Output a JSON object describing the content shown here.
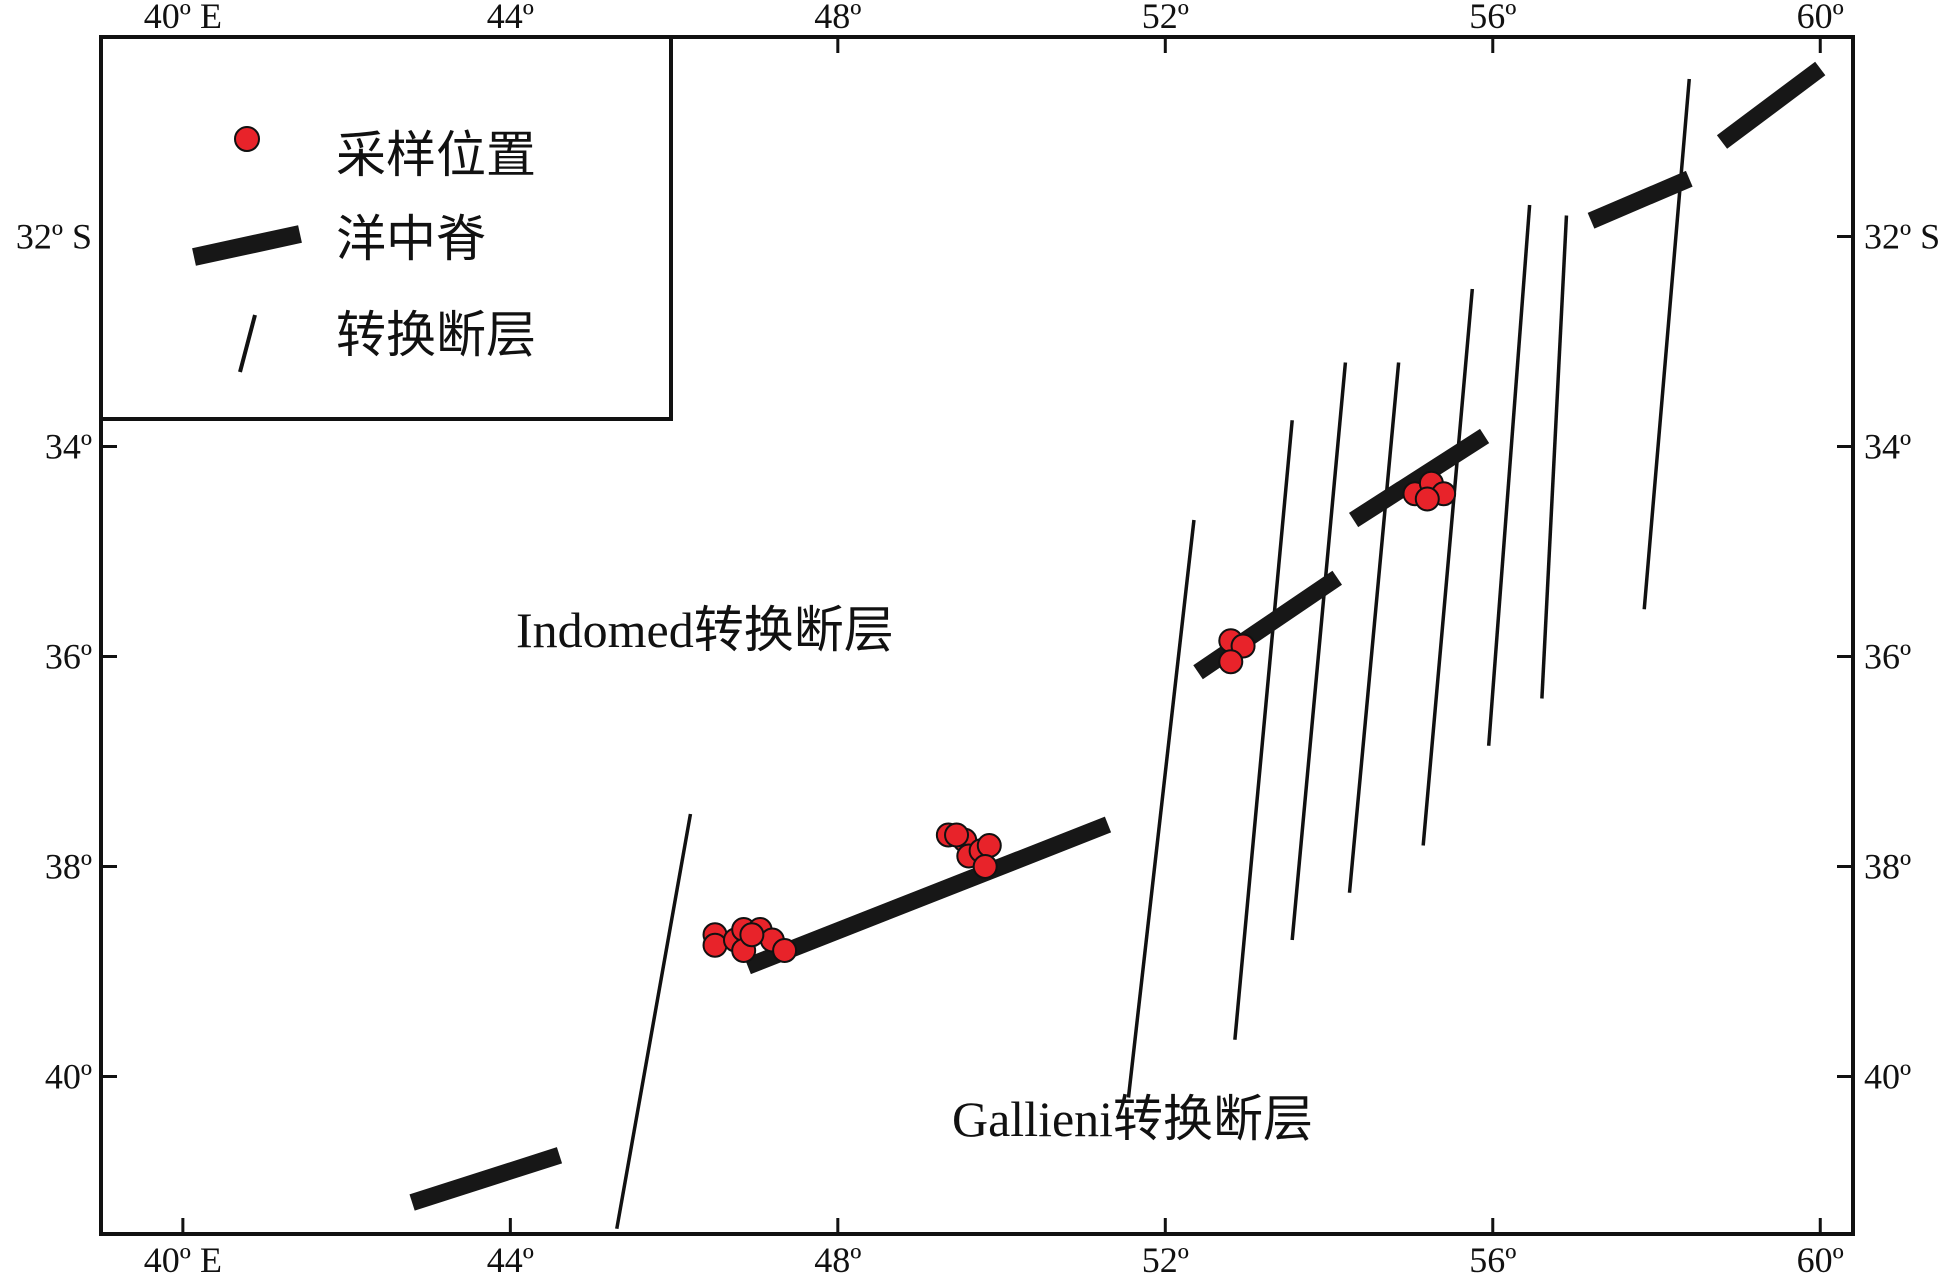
{
  "map": {
    "lon_range": [
      39,
      60.4
    ],
    "lat_range": [
      30.1,
      41.5
    ],
    "lon_ticks": [
      {
        "value": 40,
        "label": "40º E"
      },
      {
        "value": 44,
        "label": "44º"
      },
      {
        "value": 48,
        "label": "48º"
      },
      {
        "value": 52,
        "label": "52º"
      },
      {
        "value": 56,
        "label": "56º"
      },
      {
        "value": 60,
        "label": "60º"
      }
    ],
    "lat_ticks": [
      {
        "value": 32,
        "label": "32º S"
      },
      {
        "value": 34,
        "label": "34º"
      },
      {
        "value": 36,
        "label": "36º"
      },
      {
        "value": 38,
        "label": "38º"
      },
      {
        "value": 40,
        "label": "40º"
      }
    ],
    "colors": {
      "sample": "#e8232a",
      "ridge": "#171717",
      "fault": "#111111",
      "frame": "#111111"
    }
  },
  "legend": {
    "items": [
      {
        "symbol": "sample-dot",
        "label": "采样位置"
      },
      {
        "symbol": "ridge-bar",
        "label": "洋中脊"
      },
      {
        "symbol": "fault-line",
        "label": "转换断层"
      }
    ]
  },
  "annotations": {
    "indomed": "Indomed转换断层",
    "gallieni": "Gallieni转换断层"
  },
  "ridges": [
    [
      [
        42.8,
        41.2
      ],
      [
        44.6,
        40.75
      ]
    ],
    [
      [
        46.9,
        38.95
      ],
      [
        51.3,
        37.6
      ]
    ],
    [
      [
        52.4,
        36.15
      ],
      [
        54.1,
        35.25
      ]
    ],
    [
      [
        54.3,
        34.7
      ],
      [
        55.9,
        33.9
      ]
    ],
    [
      [
        57.2,
        31.85
      ],
      [
        58.4,
        31.45
      ]
    ],
    [
      [
        58.8,
        31.1
      ],
      [
        60.0,
        30.4
      ]
    ]
  ],
  "faults": [
    [
      [
        46.2,
        37.5
      ],
      [
        45.3,
        41.45
      ]
    ],
    [
      [
        52.35,
        34.7
      ],
      [
        51.55,
        40.2
      ]
    ],
    [
      [
        53.55,
        33.75
      ],
      [
        52.85,
        39.65
      ]
    ],
    [
      [
        54.2,
        33.2
      ],
      [
        53.55,
        38.7
      ]
    ],
    [
      [
        54.85,
        33.2
      ],
      [
        54.25,
        38.25
      ]
    ],
    [
      [
        55.75,
        32.5
      ],
      [
        55.15,
        37.8
      ]
    ],
    [
      [
        56.45,
        31.7
      ],
      [
        55.95,
        36.85
      ]
    ],
    [
      [
        56.9,
        31.8
      ],
      [
        56.6,
        36.4
      ]
    ],
    [
      [
        58.4,
        30.5
      ],
      [
        57.85,
        35.55
      ]
    ]
  ],
  "samples": [
    [
      46.5,
      38.65
    ],
    [
      46.5,
      38.75
    ],
    [
      46.75,
      38.7
    ],
    [
      46.85,
      38.6
    ],
    [
      46.85,
      38.8
    ],
    [
      47.05,
      38.6
    ],
    [
      47.2,
      38.7
    ],
    [
      47.35,
      38.8
    ],
    [
      46.95,
      38.65
    ],
    [
      49.35,
      37.7
    ],
    [
      49.55,
      37.75
    ],
    [
      49.6,
      37.9
    ],
    [
      49.75,
      37.85
    ],
    [
      49.85,
      37.8
    ],
    [
      49.8,
      38.0
    ],
    [
      49.45,
      37.7
    ],
    [
      52.8,
      35.85
    ],
    [
      52.95,
      35.9
    ],
    [
      52.8,
      36.05
    ],
    [
      55.05,
      34.45
    ],
    [
      55.25,
      34.35
    ],
    [
      55.4,
      34.45
    ],
    [
      55.2,
      34.5
    ]
  ]
}
